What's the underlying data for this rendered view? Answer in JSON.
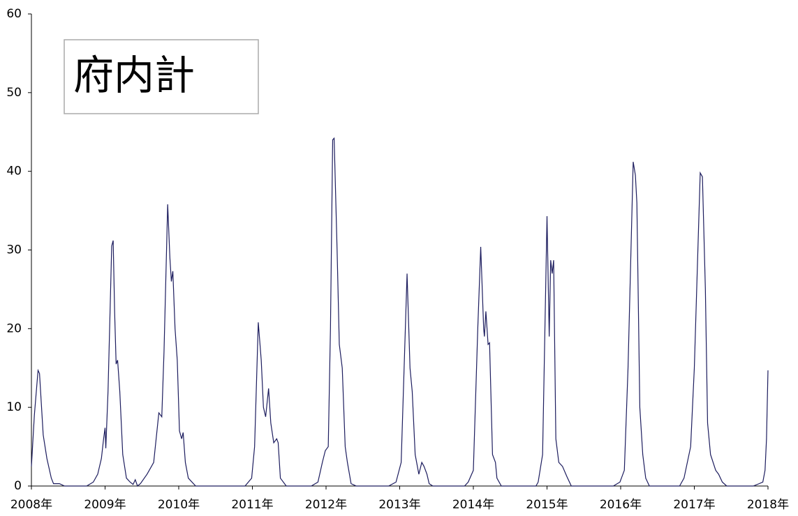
{
  "chart_data": {
    "type": "line",
    "title": "府内計",
    "color": "#1c1c5e",
    "xlim": [
      2008,
      2018
    ],
    "xticks": [
      {
        "value": 2008,
        "label": "2008年"
      },
      {
        "value": 2009,
        "label": "2009年"
      },
      {
        "value": 2010,
        "label": "2010年"
      },
      {
        "value": 2011,
        "label": "2011年"
      },
      {
        "value": 2012,
        "label": "2012年"
      },
      {
        "value": 2013,
        "label": "2013年"
      },
      {
        "value": 2014,
        "label": "2014年"
      },
      {
        "value": 2015,
        "label": "2015年"
      },
      {
        "value": 2016,
        "label": "2016年"
      },
      {
        "value": 2017,
        "label": "2017年"
      },
      {
        "value": 2018,
        "label": "2018年"
      }
    ],
    "ylim": [
      0,
      60
    ],
    "yticks": [
      0,
      10,
      20,
      30,
      40,
      50,
      60
    ],
    "x": [
      2008.0,
      2008.04,
      2008.09,
      2008.11,
      2008.16,
      2008.21,
      2008.27,
      2008.3,
      2008.38,
      2008.45,
      2008.75,
      2008.84,
      2008.9,
      2008.95,
      2008.98,
      2009.0,
      2009.01,
      2009.04,
      2009.07,
      2009.09,
      2009.11,
      2009.13,
      2009.15,
      2009.17,
      2009.2,
      2009.24,
      2009.29,
      2009.34,
      2009.38,
      2009.41,
      2009.44,
      2009.48,
      2009.57,
      2009.66,
      2009.73,
      2009.77,
      2009.8,
      2009.85,
      2009.88,
      2009.9,
      2009.92,
      2009.95,
      2009.98,
      2010.01,
      2010.04,
      2010.06,
      2010.09,
      2010.13,
      2010.23,
      2010.9,
      2010.99,
      2011.03,
      2011.08,
      2011.12,
      2011.15,
      2011.18,
      2011.22,
      2011.25,
      2011.29,
      2011.33,
      2011.35,
      2011.38,
      2011.46,
      2011.8,
      2011.89,
      2011.95,
      2011.99,
      2012.03,
      2012.06,
      2012.09,
      2012.11,
      2012.15,
      2012.18,
      2012.22,
      2012.26,
      2012.29,
      2012.34,
      2012.41,
      2012.85,
      2012.95,
      2013.02,
      2013.1,
      2013.14,
      2013.17,
      2013.21,
      2013.26,
      2013.3,
      2013.33,
      2013.37,
      2013.4,
      2013.45,
      2013.88,
      2013.93,
      2014.0,
      2014.06,
      2014.1,
      2014.14,
      2014.15,
      2014.17,
      2014.2,
      2014.22,
      2014.26,
      2014.3,
      2014.32,
      2014.38,
      2014.85,
      2014.88,
      2014.94,
      2015.0,
      2015.03,
      2015.05,
      2015.07,
      2015.09,
      2015.12,
      2015.16,
      2015.21,
      2015.27,
      2015.33,
      2015.9,
      2015.99,
      2016.05,
      2016.1,
      2016.17,
      2016.2,
      2016.22,
      2016.26,
      2016.3,
      2016.34,
      2016.39,
      2016.8,
      2016.86,
      2016.95,
      2017.0,
      2017.08,
      2017.11,
      2017.15,
      2017.18,
      2017.22,
      2017.29,
      2017.33,
      2017.38,
      2017.44,
      2017.8,
      2017.88,
      2017.93,
      2017.96,
      2017.98,
      2018.0
    ],
    "values": [
      2.5,
      9,
      14.7,
      14.3,
      6.5,
      3.5,
      1,
      0.3,
      0.3,
      0,
      0,
      0.5,
      1.5,
      3.5,
      6,
      7.4,
      4.8,
      12,
      23,
      30.5,
      31.2,
      22,
      15.5,
      16,
      12,
      4,
      1,
      0.5,
      0.2,
      0.8,
      0,
      0.3,
      1.5,
      3,
      9.3,
      8.8,
      17,
      35.8,
      29,
      26,
      27.3,
      20,
      16,
      7,
      6,
      6.8,
      3,
      1,
      0,
      0,
      1,
      5,
      20.8,
      16,
      10,
      8.8,
      12.4,
      8,
      5.5,
      6,
      5.5,
      1,
      0,
      0,
      0.5,
      3,
      4.5,
      5,
      20,
      44,
      44.2,
      30,
      18,
      15,
      5,
      3,
      0.3,
      0,
      0,
      0.5,
      3,
      27,
      15,
      12,
      4,
      1.5,
      3,
      2.5,
      1.5,
      0.3,
      0,
      0,
      0.5,
      2,
      20,
      30.4,
      20,
      19,
      22.2,
      18,
      18.2,
      4,
      3,
      1,
      0,
      0,
      0.5,
      4,
      34.3,
      19,
      28.7,
      27,
      28.7,
      6,
      3,
      2.5,
      1.2,
      0,
      0,
      0.5,
      2,
      15,
      41.2,
      39.5,
      36,
      10,
      4,
      1,
      0,
      0,
      1,
      5,
      15,
      39.8,
      39.3,
      25,
      8,
      4,
      2,
      1.5,
      0.5,
      0,
      0,
      0.3,
      0.5,
      2,
      6,
      14.7
    ]
  }
}
